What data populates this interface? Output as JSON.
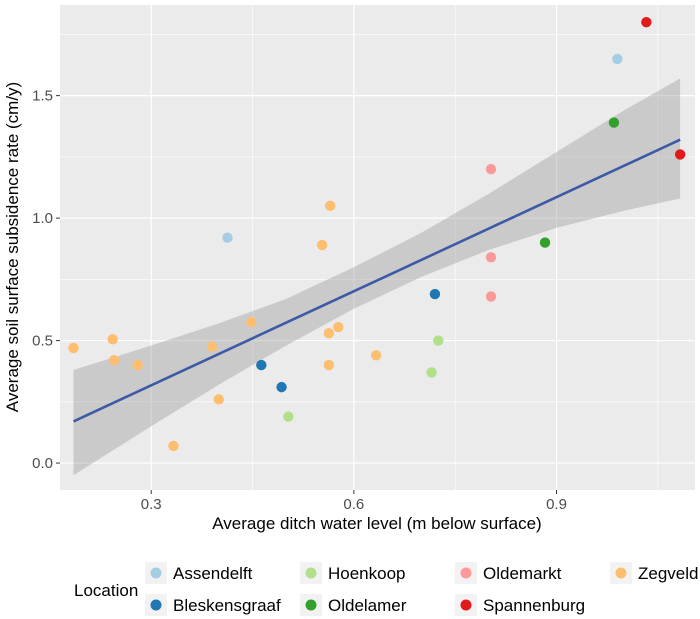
{
  "chart_data": {
    "type": "scatter",
    "xlabel": "Average ditch water level (m below surface)",
    "ylabel": "Average soil surface subsidence rate (cm/y)",
    "xlim": [
      0.165,
      1.105
    ],
    "ylim": [
      -0.11,
      1.87
    ],
    "x_ticks": [
      0.3,
      0.6,
      0.9
    ],
    "x_tick_labels": [
      "0.3",
      "0.6",
      "0.9"
    ],
    "y_ticks": [
      0.0,
      0.5,
      1.0,
      1.5
    ],
    "y_tick_labels": [
      "0.0",
      "0.5",
      "1.0",
      "1.5"
    ],
    "grid": true,
    "background": "#ebebeb",
    "legend": {
      "title": "Location",
      "position": "bottom",
      "entries": [
        {
          "name": "Assendelft",
          "color": "#a6cee3"
        },
        {
          "name": "Bleskensgraaf",
          "color": "#1f78b4"
        },
        {
          "name": "Hoenkoop",
          "color": "#b2df8a"
        },
        {
          "name": "Oldelamer",
          "color": "#33a02c"
        },
        {
          "name": "Oldemarkt",
          "color": "#fb9a99"
        },
        {
          "name": "Spannenburg",
          "color": "#e31a1c"
        },
        {
          "name": "Zegveld",
          "color": "#fdbf6f"
        }
      ]
    },
    "series": [
      {
        "name": "Assendelft",
        "color": "#a6cee3",
        "points": [
          [
            0.413,
            0.92
          ],
          [
            0.99,
            1.65
          ]
        ]
      },
      {
        "name": "Bleskensgraaf",
        "color": "#1f78b4",
        "points": [
          [
            0.463,
            0.4
          ],
          [
            0.493,
            0.31
          ],
          [
            0.72,
            0.69
          ]
        ]
      },
      {
        "name": "Hoenkoop",
        "color": "#b2df8a",
        "points": [
          [
            0.503,
            0.19
          ],
          [
            0.725,
            0.5
          ],
          [
            0.715,
            0.37
          ]
        ]
      },
      {
        "name": "Oldelamer",
        "color": "#33a02c",
        "points": [
          [
            0.883,
            0.9
          ],
          [
            0.985,
            1.39
          ]
        ]
      },
      {
        "name": "Oldemarkt",
        "color": "#fb9a99",
        "points": [
          [
            0.803,
            1.2
          ],
          [
            0.803,
            0.84
          ],
          [
            0.803,
            0.68
          ]
        ]
      },
      {
        "name": "Spannenburg",
        "color": "#e31a1c",
        "points": [
          [
            1.033,
            1.8
          ],
          [
            1.083,
            1.26
          ]
        ]
      },
      {
        "name": "Zegveld",
        "color": "#fdbf6f",
        "points": [
          [
            0.185,
            0.47
          ],
          [
            0.243,
            0.505
          ],
          [
            0.245,
            0.42
          ],
          [
            0.28,
            0.4
          ],
          [
            0.333,
            0.07
          ],
          [
            0.39,
            0.475
          ],
          [
            0.4,
            0.26
          ],
          [
            0.448,
            0.575
          ],
          [
            0.553,
            0.89
          ],
          [
            0.565,
            1.05
          ],
          [
            0.563,
            0.53
          ],
          [
            0.577,
            0.555
          ],
          [
            0.563,
            0.4
          ],
          [
            0.633,
            0.44
          ]
        ]
      }
    ],
    "fit_line": {
      "type": "linear",
      "color": "#3c5aa6",
      "x": [
        0.185,
        1.083
      ],
      "y": [
        0.17,
        1.32
      ]
    },
    "confidence_band": {
      "color": "#999999",
      "x": [
        0.185,
        0.3,
        0.4,
        0.5,
        0.6,
        0.7,
        0.8,
        0.9,
        1.0,
        1.083
      ],
      "lower": [
        -0.05,
        0.15,
        0.32,
        0.48,
        0.63,
        0.76,
        0.87,
        0.96,
        1.03,
        1.08
      ],
      "upper": [
        0.38,
        0.48,
        0.57,
        0.67,
        0.8,
        0.94,
        1.1,
        1.27,
        1.44,
        1.57
      ]
    }
  }
}
